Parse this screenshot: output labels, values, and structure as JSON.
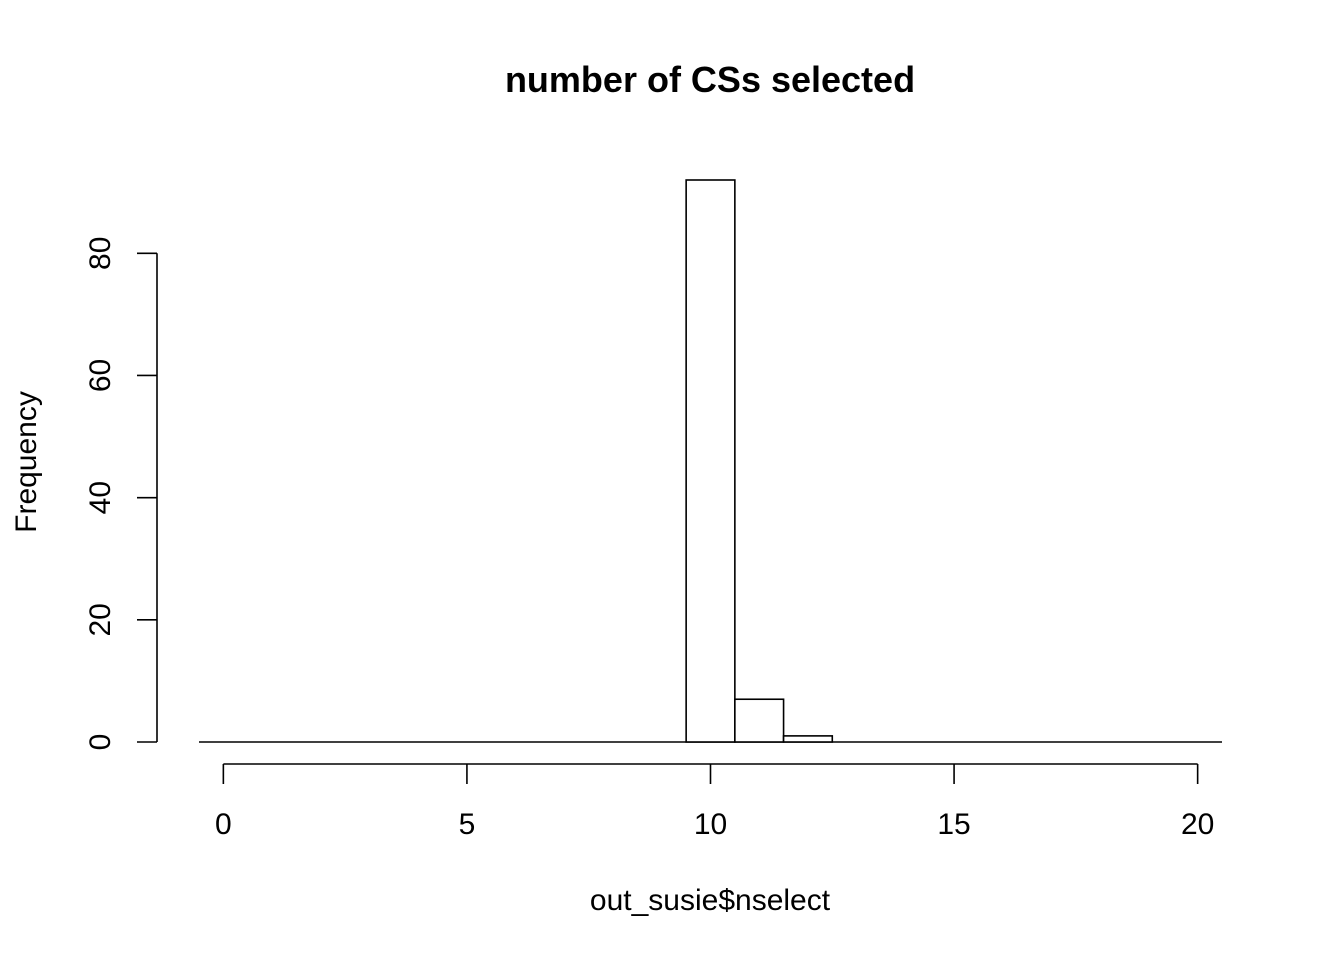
{
  "chart_data": {
    "type": "bar",
    "title": "number of CSs selected",
    "xlabel": "out_susie$nselect",
    "ylabel": "Frequency",
    "bins": [
      {
        "from": -0.5,
        "to": 0.5,
        "count": 0
      },
      {
        "from": 0.5,
        "to": 1.5,
        "count": 0
      },
      {
        "from": 1.5,
        "to": 2.5,
        "count": 0
      },
      {
        "from": 2.5,
        "to": 3.5,
        "count": 0
      },
      {
        "from": 3.5,
        "to": 4.5,
        "count": 0
      },
      {
        "from": 4.5,
        "to": 5.5,
        "count": 0
      },
      {
        "from": 5.5,
        "to": 6.5,
        "count": 0
      },
      {
        "from": 6.5,
        "to": 7.5,
        "count": 0
      },
      {
        "from": 7.5,
        "to": 8.5,
        "count": 0
      },
      {
        "from": 8.5,
        "to": 9.5,
        "count": 0
      },
      {
        "from": 9.5,
        "to": 10.5,
        "count": 92
      },
      {
        "from": 10.5,
        "to": 11.5,
        "count": 7
      },
      {
        "from": 11.5,
        "to": 12.5,
        "count": 1
      },
      {
        "from": 12.5,
        "to": 13.5,
        "count": 0
      },
      {
        "from": 13.5,
        "to": 14.5,
        "count": 0
      },
      {
        "from": 14.5,
        "to": 15.5,
        "count": 0
      },
      {
        "from": 15.5,
        "to": 16.5,
        "count": 0
      },
      {
        "from": 16.5,
        "to": 17.5,
        "count": 0
      },
      {
        "from": 17.5,
        "to": 18.5,
        "count": 0
      },
      {
        "from": 18.5,
        "to": 19.5,
        "count": 0
      },
      {
        "from": 19.5,
        "to": 20.5,
        "count": 0
      }
    ],
    "x_ticks": [
      "0",
      "5",
      "10",
      "15",
      "20"
    ],
    "y_ticks": [
      "0",
      "20",
      "40",
      "60",
      "80"
    ],
    "xlim": [
      -0.5,
      20.5
    ],
    "ylim": [
      0,
      92
    ],
    "grid": false
  }
}
